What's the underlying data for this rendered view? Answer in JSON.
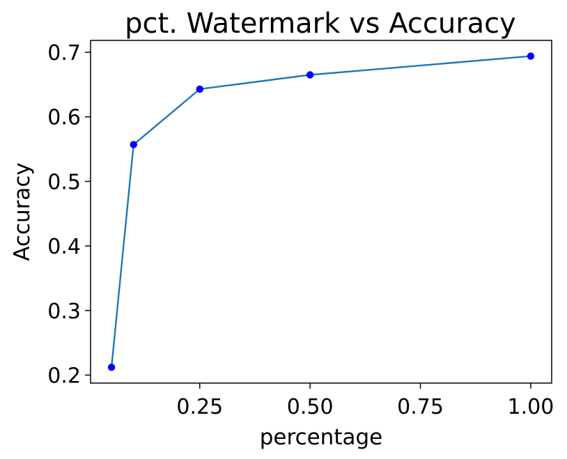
{
  "chart_data": {
    "type": "line",
    "title": "pct. Watermark vs Accuracy",
    "xlabel": "percentage",
    "ylabel": "Accuracy",
    "x": [
      0.05,
      0.1,
      0.25,
      0.5,
      1.0
    ],
    "series": [
      {
        "values": [
          0.212,
          0.557,
          0.643,
          0.665,
          0.694
        ],
        "line_color": "#1f77b4",
        "marker_color": "#0000ff"
      }
    ],
    "xlim": [
      0.0025,
      1.0475
    ],
    "ylim": [
      0.1876,
      0.7184
    ],
    "x_ticks": [
      0.25,
      0.5,
      0.75,
      1.0
    ],
    "x_tick_labels": [
      "0.25",
      "0.50",
      "0.75",
      "1.00"
    ],
    "y_ticks": [
      0.2,
      0.3,
      0.4,
      0.5,
      0.6,
      0.7
    ],
    "y_tick_labels": [
      "0.2",
      "0.3",
      "0.4",
      "0.5",
      "0.6",
      "0.7"
    ],
    "grid": false,
    "legend": "none"
  }
}
